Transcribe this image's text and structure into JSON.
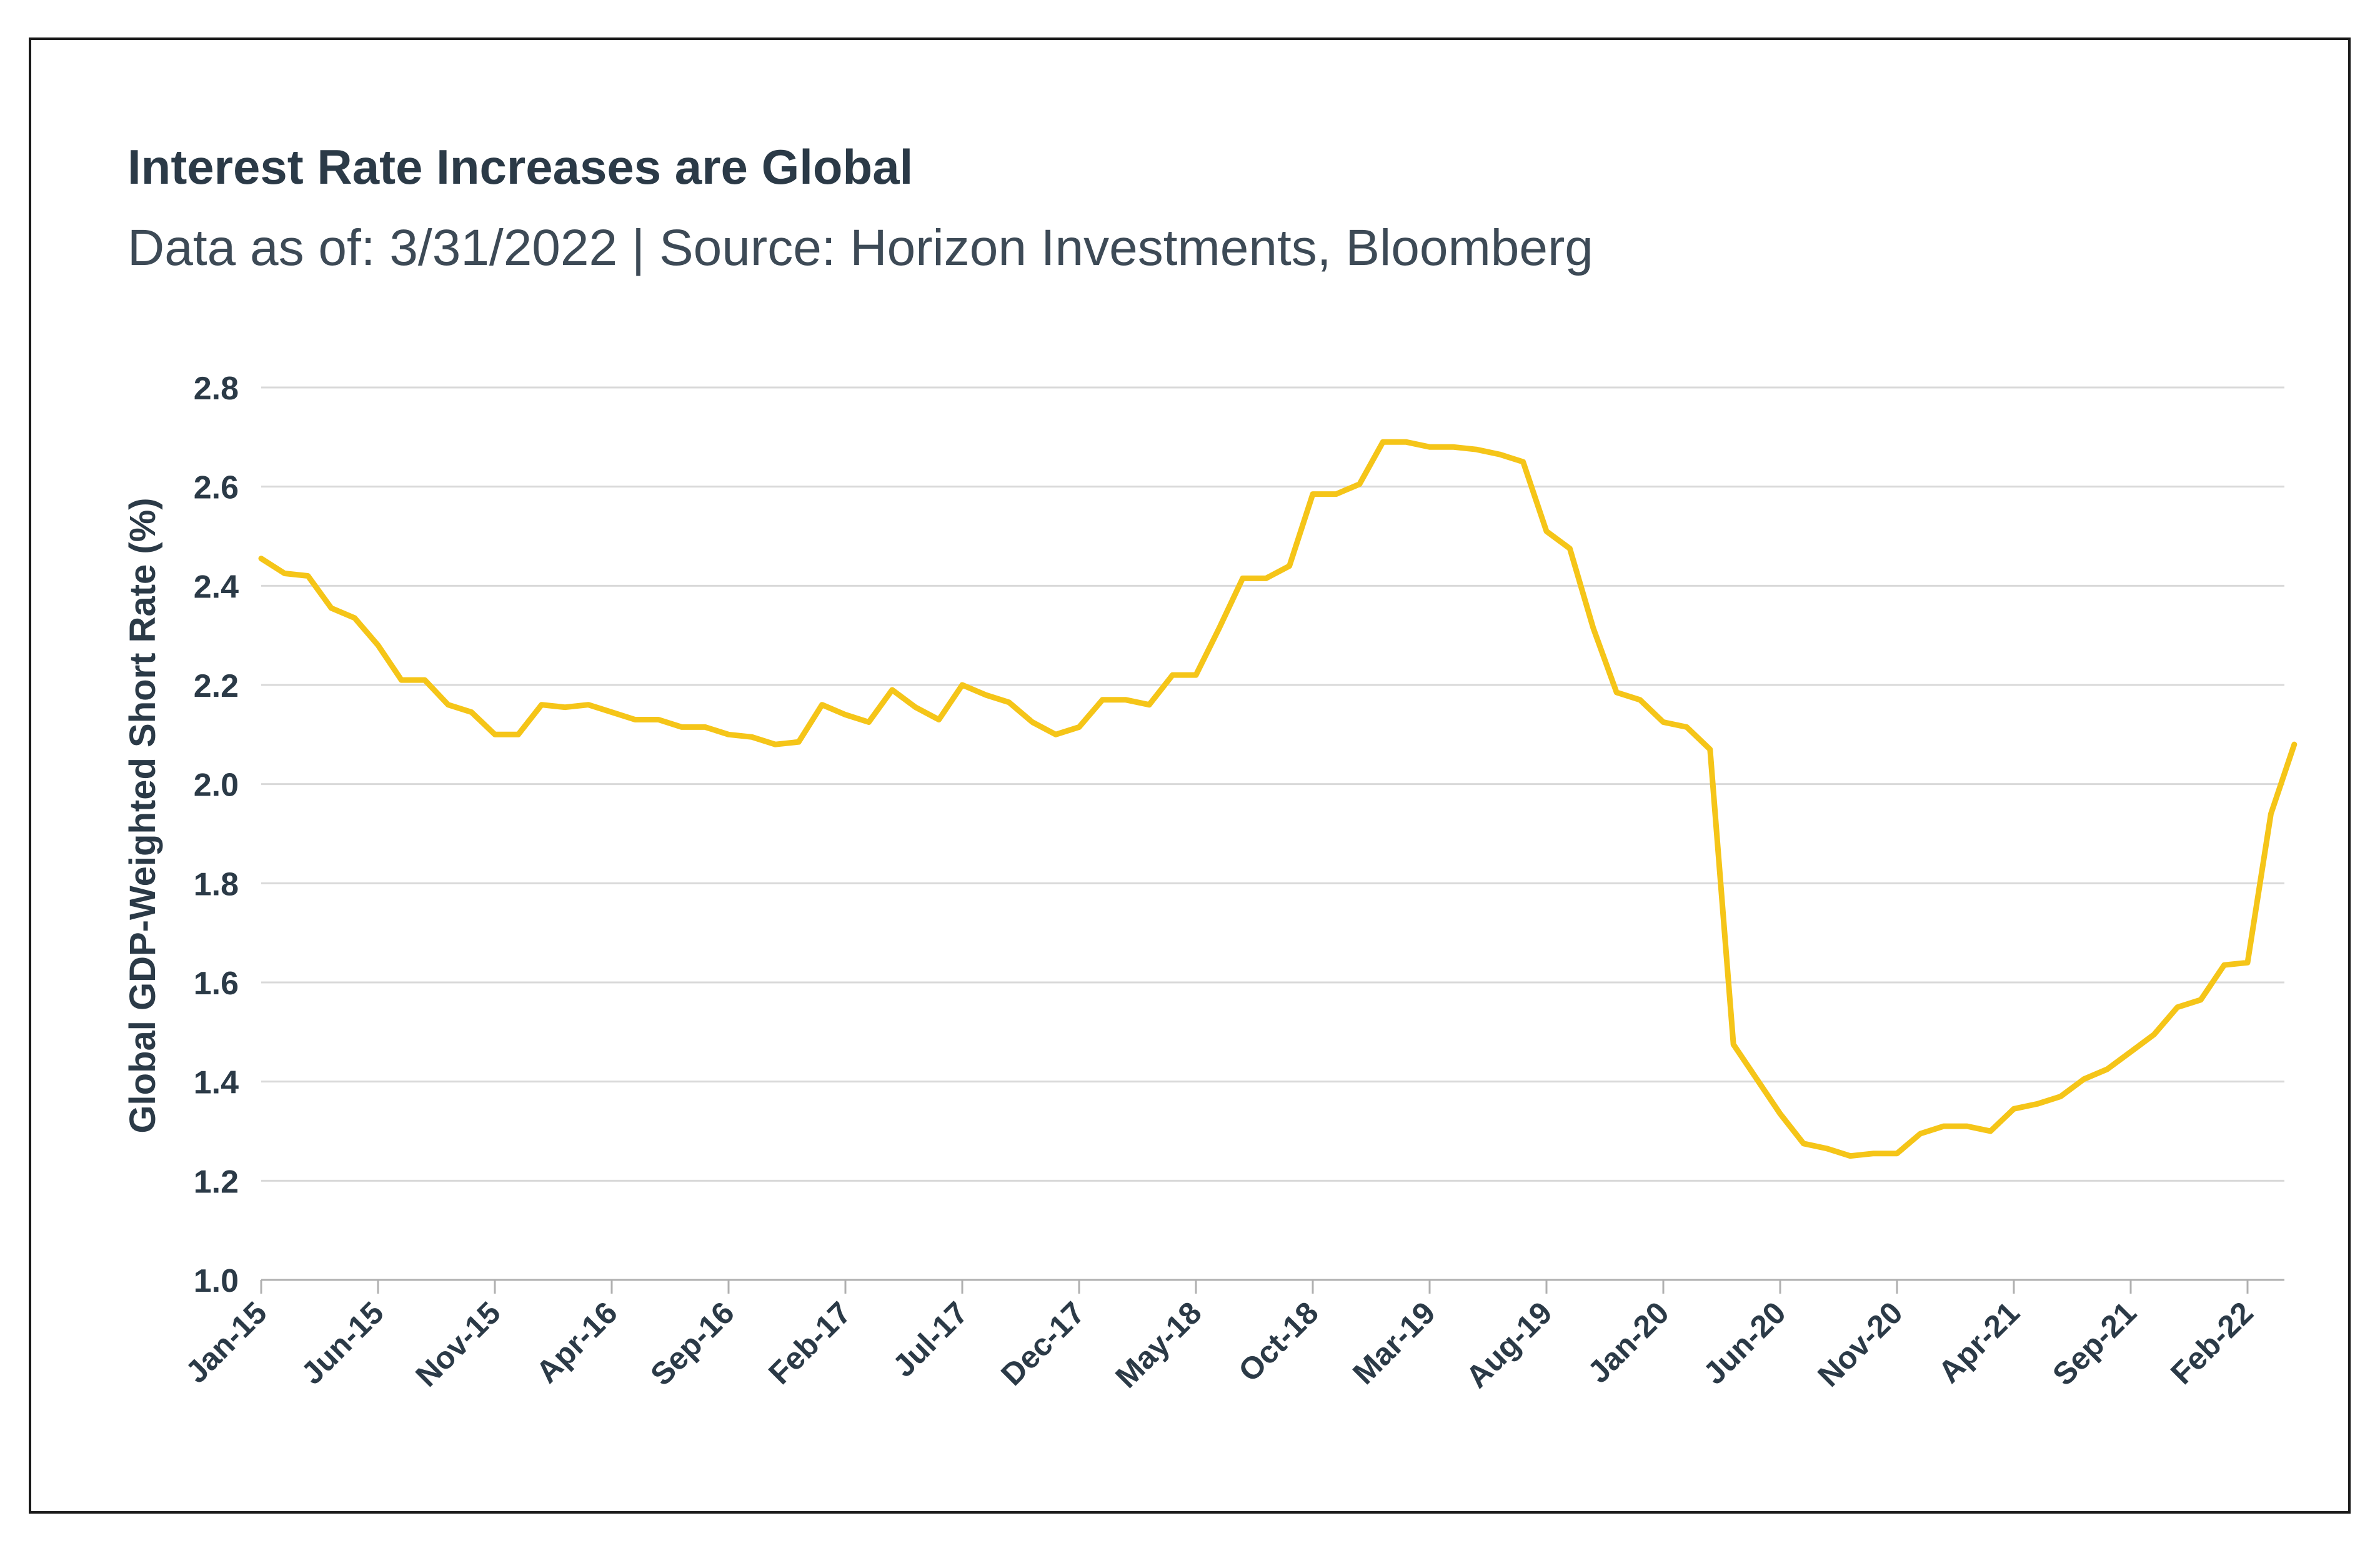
{
  "title": "Interest Rate Increases are Global",
  "subtitle": "Data as of: 3/31/2022 | Source: Horizon Investments, Bloomberg",
  "colors": {
    "line": "#F5C518",
    "text": "#2b3a47",
    "grid": "#d9d9d9"
  },
  "chart_data": {
    "type": "line",
    "title": "Interest Rate Increases are Global",
    "subtitle": "Data as of: 3/31/2022 | Source: Horizon Investments, Bloomberg",
    "xlabel": "",
    "ylabel": "Global GDP-Weighted Short Rate (%)",
    "ylim": [
      1.0,
      2.8
    ],
    "yticks": [
      "1.0",
      "1.2",
      "1.4",
      "1.6",
      "1.8",
      "2.0",
      "2.2",
      "2.4",
      "2.6",
      "2.8"
    ],
    "xticks": [
      "Jan-15",
      "Jun-15",
      "Nov-15",
      "Apr-16",
      "Sep-16",
      "Feb-17",
      "Jul-17",
      "Dec-17",
      "May-18",
      "Oct-18",
      "Mar-19",
      "Aug-19",
      "Jan-20",
      "Jun-20",
      "Nov-20",
      "Apr-21",
      "Sep-21",
      "Feb-22"
    ],
    "grid": true,
    "legend": "none",
    "series": [
      {
        "values": [
          2.455,
          2.425,
          2.42,
          2.355,
          2.335,
          2.28,
          2.21,
          2.21,
          2.16,
          2.145,
          2.1,
          2.1,
          2.16,
          2.155,
          2.16,
          2.145,
          2.13,
          2.13,
          2.115,
          2.115,
          2.1,
          2.095,
          2.08,
          2.085,
          2.16,
          2.14,
          2.125,
          2.19,
          2.155,
          2.13,
          2.2,
          2.18,
          2.165,
          2.125,
          2.1,
          2.115,
          2.17,
          2.17,
          2.16,
          2.22,
          2.22,
          2.315,
          2.415,
          2.415,
          2.44,
          2.585,
          2.585,
          2.605,
          2.69,
          2.69,
          2.68,
          2.68,
          2.675,
          2.665,
          2.65,
          2.51,
          2.475,
          2.315,
          2.185,
          2.17,
          2.125,
          2.115,
          2.07,
          1.475,
          1.405,
          1.335,
          1.275,
          1.265,
          1.25,
          1.255,
          1.255,
          1.295,
          1.31,
          1.31,
          1.3,
          1.345,
          1.355,
          1.37,
          1.405,
          1.425,
          1.46,
          1.495,
          1.55,
          1.565,
          1.635,
          1.64,
          1.94,
          2.08
        ]
      }
    ]
  }
}
